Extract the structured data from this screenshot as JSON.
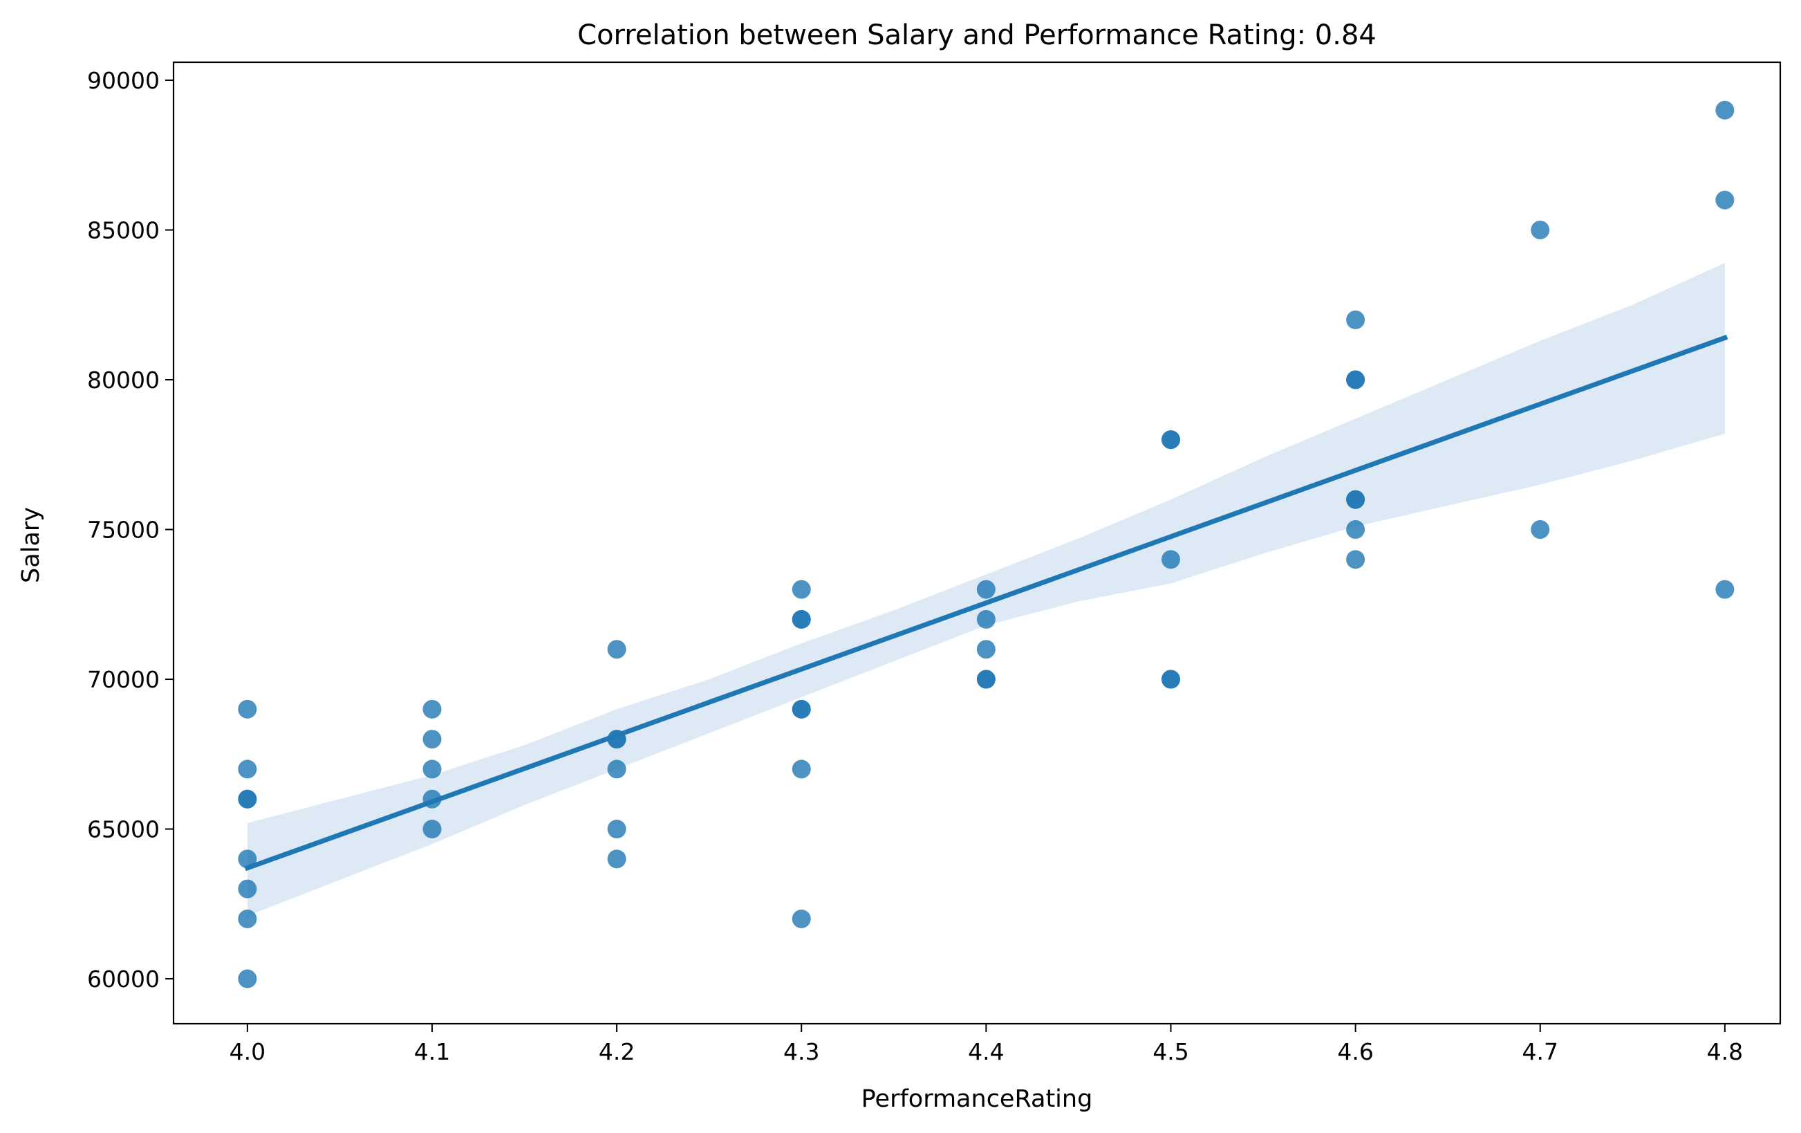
{
  "chart_data": {
    "type": "scatter",
    "title": "Correlation between Salary and Performance Rating: 0.84",
    "xlabel": "PerformanceRating",
    "ylabel": "Salary",
    "xlim": [
      3.96,
      4.83
    ],
    "ylim": [
      58500,
      90600
    ],
    "xticks": [
      4.0,
      4.1,
      4.2,
      4.3,
      4.4,
      4.5,
      4.6,
      4.7,
      4.8
    ],
    "xtick_labels": [
      "4.0",
      "4.1",
      "4.2",
      "4.3",
      "4.4",
      "4.5",
      "4.6",
      "4.7",
      "4.8"
    ],
    "yticks": [
      60000,
      65000,
      70000,
      75000,
      80000,
      85000,
      90000
    ],
    "ytick_labels": [
      "60000",
      "65000",
      "70000",
      "75000",
      "80000",
      "85000",
      "90000"
    ],
    "grid": false,
    "colors": {
      "points": "#1f77b4",
      "line": "#1f77b4",
      "band": "#dde9f4"
    },
    "points": [
      [
        4.0,
        69000
      ],
      [
        4.0,
        67000
      ],
      [
        4.0,
        66000
      ],
      [
        4.0,
        66000
      ],
      [
        4.0,
        64000
      ],
      [
        4.0,
        63000
      ],
      [
        4.0,
        62000
      ],
      [
        4.0,
        60000
      ],
      [
        4.1,
        69000
      ],
      [
        4.1,
        68000
      ],
      [
        4.1,
        67000
      ],
      [
        4.1,
        66000
      ],
      [
        4.1,
        65000
      ],
      [
        4.2,
        71000
      ],
      [
        4.2,
        68000
      ],
      [
        4.2,
        68000
      ],
      [
        4.2,
        67000
      ],
      [
        4.2,
        65000
      ],
      [
        4.2,
        64000
      ],
      [
        4.3,
        73000
      ],
      [
        4.3,
        72000
      ],
      [
        4.3,
        72000
      ],
      [
        4.3,
        69000
      ],
      [
        4.3,
        69000
      ],
      [
        4.3,
        67000
      ],
      [
        4.3,
        62000
      ],
      [
        4.4,
        73000
      ],
      [
        4.4,
        72000
      ],
      [
        4.4,
        71000
      ],
      [
        4.4,
        70000
      ],
      [
        4.4,
        70000
      ],
      [
        4.5,
        78000
      ],
      [
        4.5,
        78000
      ],
      [
        4.5,
        74000
      ],
      [
        4.5,
        70000
      ],
      [
        4.5,
        70000
      ],
      [
        4.6,
        82000
      ],
      [
        4.6,
        80000
      ],
      [
        4.6,
        80000
      ],
      [
        4.6,
        76000
      ],
      [
        4.6,
        76000
      ],
      [
        4.6,
        75000
      ],
      [
        4.6,
        74000
      ],
      [
        4.7,
        85000
      ],
      [
        4.7,
        75000
      ],
      [
        4.8,
        89000
      ],
      [
        4.8,
        86000
      ],
      [
        4.8,
        73000
      ]
    ],
    "regression_line": [
      [
        4.0,
        63700
      ],
      [
        4.8,
        81400
      ]
    ],
    "confidence_band": {
      "x": [
        4.0,
        4.05,
        4.1,
        4.15,
        4.2,
        4.25,
        4.3,
        4.35,
        4.4,
        4.45,
        4.5,
        4.55,
        4.6,
        4.65,
        4.7,
        4.75,
        4.8
      ],
      "upper": [
        65200,
        66000,
        66800,
        67800,
        69000,
        70000,
        71200,
        72300,
        73500,
        74700,
        76000,
        77400,
        78700,
        80000,
        81300,
        82500,
        83900
      ],
      "lower": [
        62100,
        63300,
        64500,
        65800,
        67000,
        68200,
        69400,
        70600,
        71800,
        72600,
        73200,
        74200,
        75100,
        75800,
        76500,
        77300,
        78200
      ]
    }
  }
}
